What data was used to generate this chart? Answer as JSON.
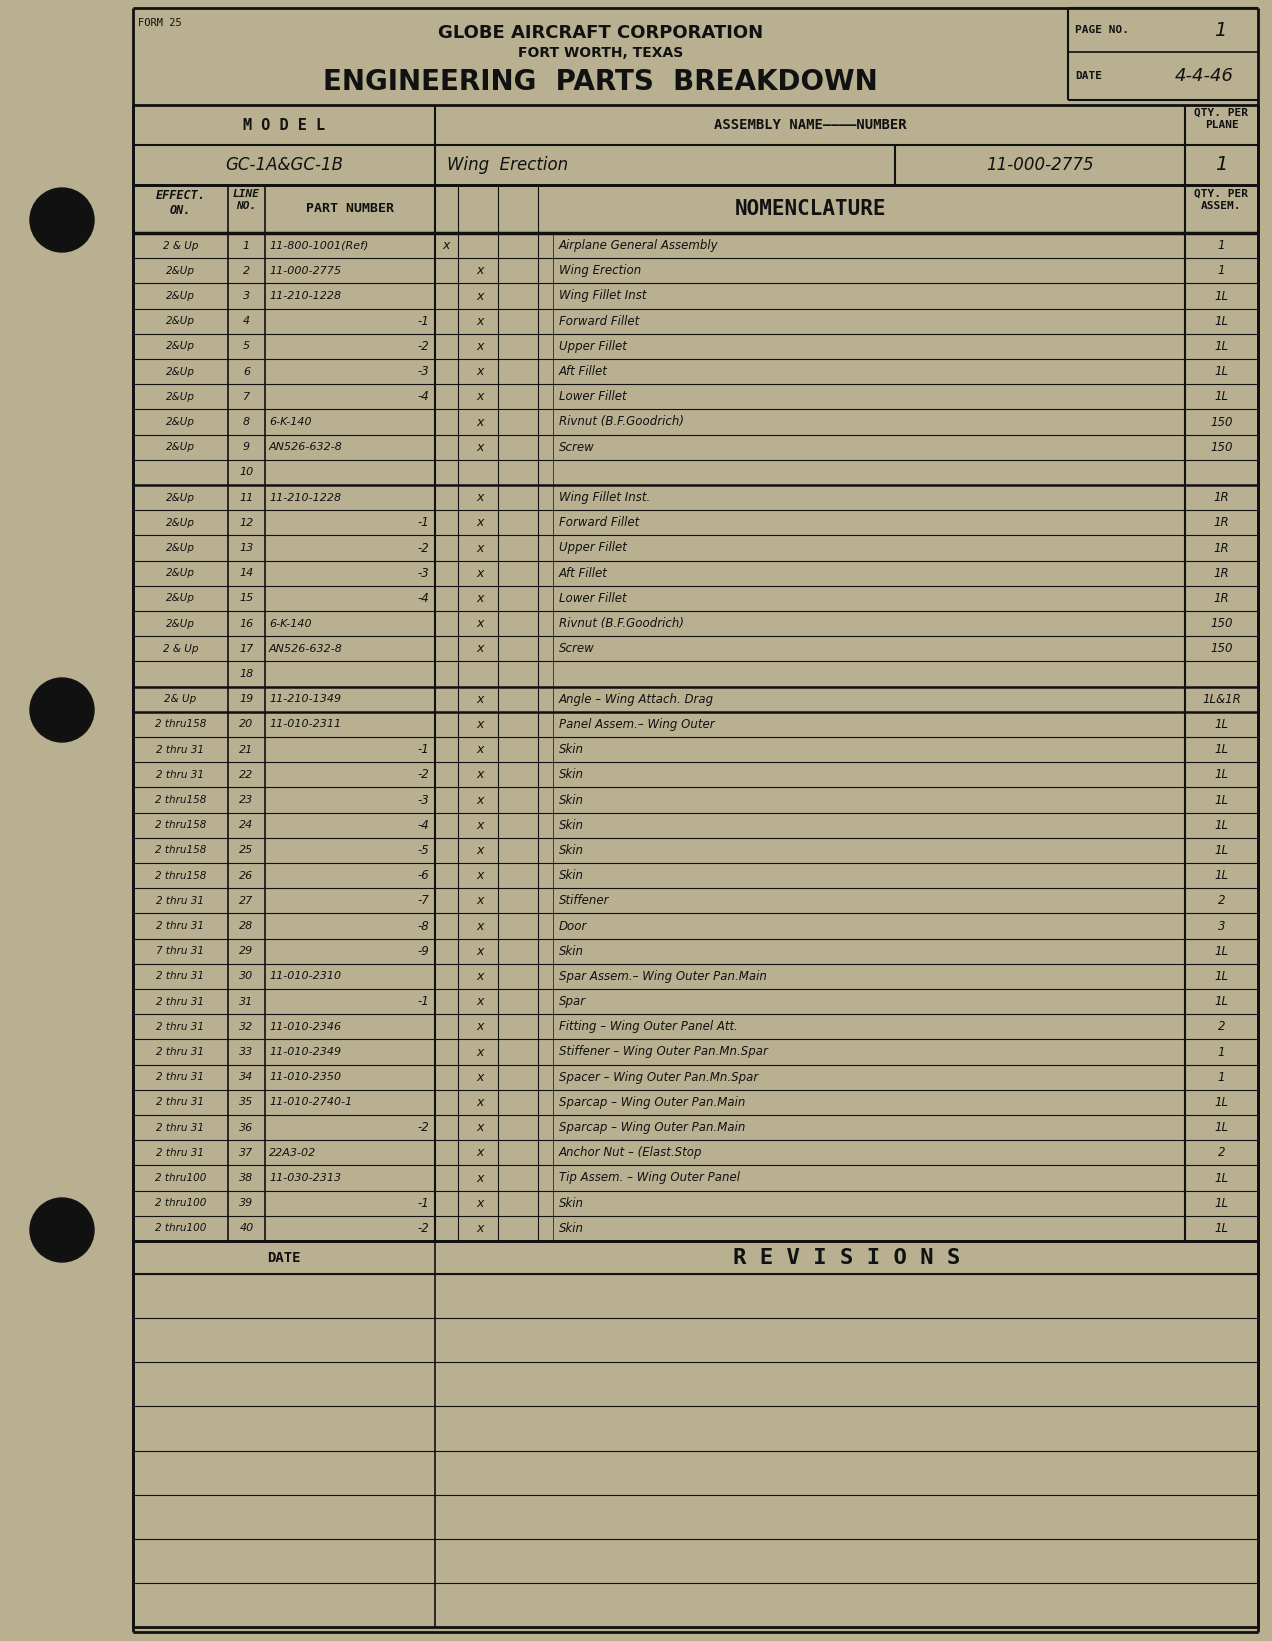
{
  "bg_color": "#b8b090",
  "paper_color": "#c8bf9a",
  "line_color": "#111111",
  "title1": "GLOBE AIRCRAFT CORPORATION",
  "title2": "FORT WORTH, TEXAS",
  "title3": "ENGINEERING  PARTS  BREAKDOWN",
  "form_label": "FORM 25",
  "page_no_label": "PAGE NO.",
  "page_no": "1",
  "date_label": "DATE",
  "date_val": "4-4-46",
  "model_label": "M O D E L",
  "assembly_label": "ASSEMBLY NAME————NUMBER",
  "qty_per_plane_label": "QTY. PER\nPLANE",
  "model_val": "GC-1A&GC-1B",
  "assembly_name": "Wing  Erection",
  "assembly_number": "11-000-2775",
  "qty_per_plane_val": "1",
  "effect_on_header": "EFFECT.\nON.",
  "line_no_header": "LINE\nNO.",
  "part_number_header": "PART NUMBER",
  "nomenclature_header": "NOMENCLATURE",
  "qty_per_assem_header": "QTY. PER\nASSEM.",
  "rows": [
    {
      "effect": "2 & Up",
      "line": "1",
      "part": "11-800-1001(Ref)",
      "xA": "x",
      "xB": "",
      "nomenclature": "Airplane General Assembly",
      "qty": "1"
    },
    {
      "effect": "2&Up",
      "line": "2",
      "part": "11-000-2775",
      "xA": "",
      "xB": "x",
      "nomenclature": "Wing Erection",
      "qty": "1"
    },
    {
      "effect": "2&Up",
      "line": "3",
      "part": "11-210-1228",
      "xA": "",
      "xB": "x",
      "nomenclature": "Wing Fillet Inst",
      "qty": "1L"
    },
    {
      "effect": "2&Up",
      "line": "4",
      "part": "-1",
      "xA": "",
      "xB": "x",
      "nomenclature": "Forward Fillet",
      "qty": "1L"
    },
    {
      "effect": "2&Up",
      "line": "5",
      "part": "-2",
      "xA": "",
      "xB": "x",
      "nomenclature": "Upper Fillet",
      "qty": "1L"
    },
    {
      "effect": "2&Up",
      "line": "6",
      "part": "-3",
      "xA": "",
      "xB": "x",
      "nomenclature": "Aft Fillet",
      "qty": "1L"
    },
    {
      "effect": "2&Up",
      "line": "7",
      "part": "-4",
      "xA": "",
      "xB": "x",
      "nomenclature": "Lower Fillet",
      "qty": "1L"
    },
    {
      "effect": "2&Up",
      "line": "8",
      "part": "6-K-140",
      "xA": "",
      "xB": "x",
      "nomenclature": "Rivnut (B.F.Goodrich)",
      "qty": "150"
    },
    {
      "effect": "2&Up",
      "line": "9",
      "part": "AN526-632-8",
      "xA": "",
      "xB": "x",
      "nomenclature": "Screw",
      "qty": "150"
    },
    {
      "effect": "",
      "line": "10",
      "part": "",
      "xA": "",
      "xB": "",
      "nomenclature": "",
      "qty": ""
    },
    {
      "effect": "2&Up",
      "line": "11",
      "part": "11-210-1228",
      "xA": "",
      "xB": "x",
      "nomenclature": "Wing Fillet Inst.",
      "qty": "1R"
    },
    {
      "effect": "2&Up",
      "line": "12",
      "part": "-1",
      "xA": "",
      "xB": "x",
      "nomenclature": "Forward Fillet",
      "qty": "1R"
    },
    {
      "effect": "2&Up",
      "line": "13",
      "part": "-2",
      "xA": "",
      "xB": "x",
      "nomenclature": "Upper Fillet",
      "qty": "1R"
    },
    {
      "effect": "2&Up",
      "line": "14",
      "part": "-3",
      "xA": "",
      "xB": "x",
      "nomenclature": "Aft Fillet",
      "qty": "1R"
    },
    {
      "effect": "2&Up",
      "line": "15",
      "part": "-4",
      "xA": "",
      "xB": "x",
      "nomenclature": "Lower Fillet",
      "qty": "1R"
    },
    {
      "effect": "2&Up",
      "line": "16",
      "part": "6-K-140",
      "xA": "",
      "xB": "x",
      "nomenclature": "Rivnut (B.F.Goodrich)",
      "qty": "150"
    },
    {
      "effect": "2 & Up",
      "line": "17",
      "part": "AN526-632-8",
      "xA": "",
      "xB": "x",
      "nomenclature": "Screw",
      "qty": "150"
    },
    {
      "effect": "",
      "line": "18",
      "part": "",
      "xA": "",
      "xB": "",
      "nomenclature": "",
      "qty": ""
    },
    {
      "effect": "2& Up",
      "line": "19",
      "part": "11-210-1349",
      "xA": "",
      "xB": "x",
      "nomenclature": "Angle – Wing Attach. Drag",
      "qty": "1L&1R"
    },
    {
      "effect": "2 thru158",
      "line": "20",
      "part": "11-010-2311",
      "xA": "",
      "xB": "x",
      "nomenclature": "Panel Assem.– Wing Outer",
      "qty": "1L"
    },
    {
      "effect": "2 thru 31",
      "line": "21",
      "part": "-1",
      "xA": "",
      "xB": "x",
      "nomenclature": "Skin",
      "qty": "1L"
    },
    {
      "effect": "2 thru 31",
      "line": "22",
      "part": "-2",
      "xA": "",
      "xB": "x",
      "nomenclature": "Skin",
      "qty": "1L"
    },
    {
      "effect": "2 thru158",
      "line": "23",
      "part": "-3",
      "xA": "",
      "xB": "x",
      "nomenclature": "Skin",
      "qty": "1L"
    },
    {
      "effect": "2 thru158",
      "line": "24",
      "part": "-4",
      "xA": "",
      "xB": "x",
      "nomenclature": "Skin",
      "qty": "1L"
    },
    {
      "effect": "2 thru158",
      "line": "25",
      "part": "-5",
      "xA": "",
      "xB": "x",
      "nomenclature": "Skin",
      "qty": "1L"
    },
    {
      "effect": "2 thru158",
      "line": "26",
      "part": "-6",
      "xA": "",
      "xB": "x",
      "nomenclature": "Skin",
      "qty": "1L"
    },
    {
      "effect": "2 thru 31",
      "line": "27",
      "part": "-7",
      "xA": "",
      "xB": "x",
      "nomenclature": "Stiffener",
      "qty": "2"
    },
    {
      "effect": "2 thru 31",
      "line": "28",
      "part": "-8",
      "xA": "",
      "xB": "x",
      "nomenclature": "Door",
      "qty": "3"
    },
    {
      "effect": "7 thru 31",
      "line": "29",
      "part": "-9",
      "xA": "",
      "xB": "x",
      "nomenclature": "Skin",
      "qty": "1L"
    },
    {
      "effect": "2 thru 31",
      "line": "30",
      "part": "11-010-2310",
      "xA": "",
      "xB": "x",
      "nomenclature": "Spar Assem.– Wing Outer Pan.Main",
      "qty": "1L"
    },
    {
      "effect": "2 thru 31",
      "line": "31",
      "part": "-1",
      "xA": "",
      "xB": "x",
      "nomenclature": "Spar",
      "qty": "1L"
    },
    {
      "effect": "2 thru 31",
      "line": "32",
      "part": "11-010-2346",
      "xA": "",
      "xB": "x",
      "nomenclature": "Fitting – Wing Outer Panel Att.",
      "qty": "2"
    },
    {
      "effect": "2 thru 31",
      "line": "33",
      "part": "11-010-2349",
      "xA": "",
      "xB": "x",
      "nomenclature": "Stiffener – Wing Outer Pan.Mn.Spar",
      "qty": "1"
    },
    {
      "effect": "2 thru 31",
      "line": "34",
      "part": "11-010-2350",
      "xA": "",
      "xB": "x",
      "nomenclature": "Spacer – Wing Outer Pan.Mn.Spar",
      "qty": "1"
    },
    {
      "effect": "2 thru 31",
      "line": "35",
      "part": "11-010-2740-1",
      "xA": "",
      "xB": "x",
      "nomenclature": "Sparcap – Wing Outer Pan.Main",
      "qty": "1L"
    },
    {
      "effect": "2 thru 31",
      "line": "36",
      "part": "-2",
      "xA": "",
      "xB": "x",
      "nomenclature": "Sparcap – Wing Outer Pan.Main",
      "qty": "1L"
    },
    {
      "effect": "2 thru 31",
      "line": "37",
      "part": "22A3-02",
      "xA": "",
      "xB": "x",
      "nomenclature": "Anchor Nut – (Elast.Stop",
      "qty": "2"
    },
    {
      "effect": "2 thru100",
      "line": "38",
      "part": "11-030-2313",
      "xA": "",
      "xB": "x",
      "nomenclature": "Tip Assem. – Wing Outer Panel",
      "qty": "1L"
    },
    {
      "effect": "2 thru100",
      "line": "39",
      "part": "-1",
      "xA": "",
      "xB": "x",
      "nomenclature": "Skin",
      "qty": "1L"
    },
    {
      "effect": "2 thru100",
      "line": "40",
      "part": "-2",
      "xA": "",
      "xB": "x",
      "nomenclature": "Skin",
      "qty": "1L"
    }
  ],
  "revisions_label": "R E V I S I O N S",
  "date_rev_label": "DATE",
  "n_revision_rows": 8
}
